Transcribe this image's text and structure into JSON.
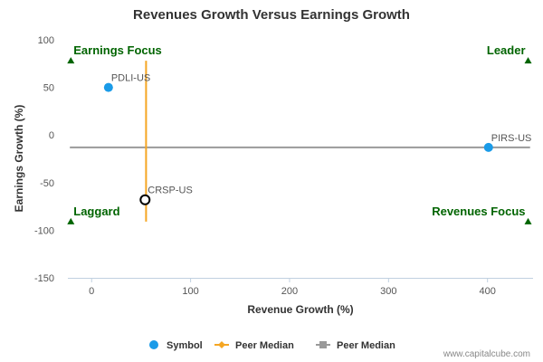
{
  "chart_data": {
    "type": "scatter",
    "title": "Revenues Growth Versus Earnings Growth",
    "xlabel": "Revenue Growth (%)",
    "ylabel": "Earnings Growth (%)",
    "xlim": [
      -24,
      446
    ],
    "ylim": [
      -150,
      100
    ],
    "xticks": [
      0,
      100,
      200,
      300,
      400
    ],
    "yticks": [
      100,
      50,
      0,
      -50,
      -100,
      -150
    ],
    "points": [
      {
        "label": "PDLI-US",
        "x": 17,
        "y": 50,
        "style": "filled"
      },
      {
        "label": "PIRS-US",
        "x": 401,
        "y": -13,
        "style": "filled"
      },
      {
        "label": "CRSP-US",
        "x": 54,
        "y": -68,
        "style": "hollow"
      }
    ],
    "peer_median_revenue": {
      "x": 55,
      "y_from": -91,
      "y_to": 78
    },
    "peer_median_earnings": {
      "y": -13,
      "x_from": -22,
      "x_to": 443
    },
    "quadrants": [
      {
        "label": "Earnings Focus",
        "position": "top-left",
        "marker_x": -21,
        "marker_y": 78
      },
      {
        "label": "Leader",
        "position": "top-right",
        "marker_x": 441,
        "marker_y": 78
      },
      {
        "label": "Laggard",
        "position": "bottom-left",
        "marker_x": -21,
        "marker_y": -91
      },
      {
        "label": "Revenues Focus",
        "position": "bottom-right",
        "marker_x": 441,
        "marker_y": -91
      }
    ],
    "legend": {
      "position": "bottom-center",
      "items": [
        {
          "label": "Symbol",
          "kind": "dot"
        },
        {
          "label": "Peer Median",
          "kind": "orange-line"
        },
        {
          "label": "Peer Median",
          "kind": "gray-line"
        }
      ]
    },
    "grid": false
  },
  "credit": "www.capitalcube.com",
  "colors": {
    "point": "#1a9be8",
    "hollow_point": "#000000",
    "peer_median_revenue": "#f5a623",
    "peer_median_earnings": "#9a9a9a",
    "quadrant": "#006400",
    "axis_line": "#c0d0e0"
  }
}
